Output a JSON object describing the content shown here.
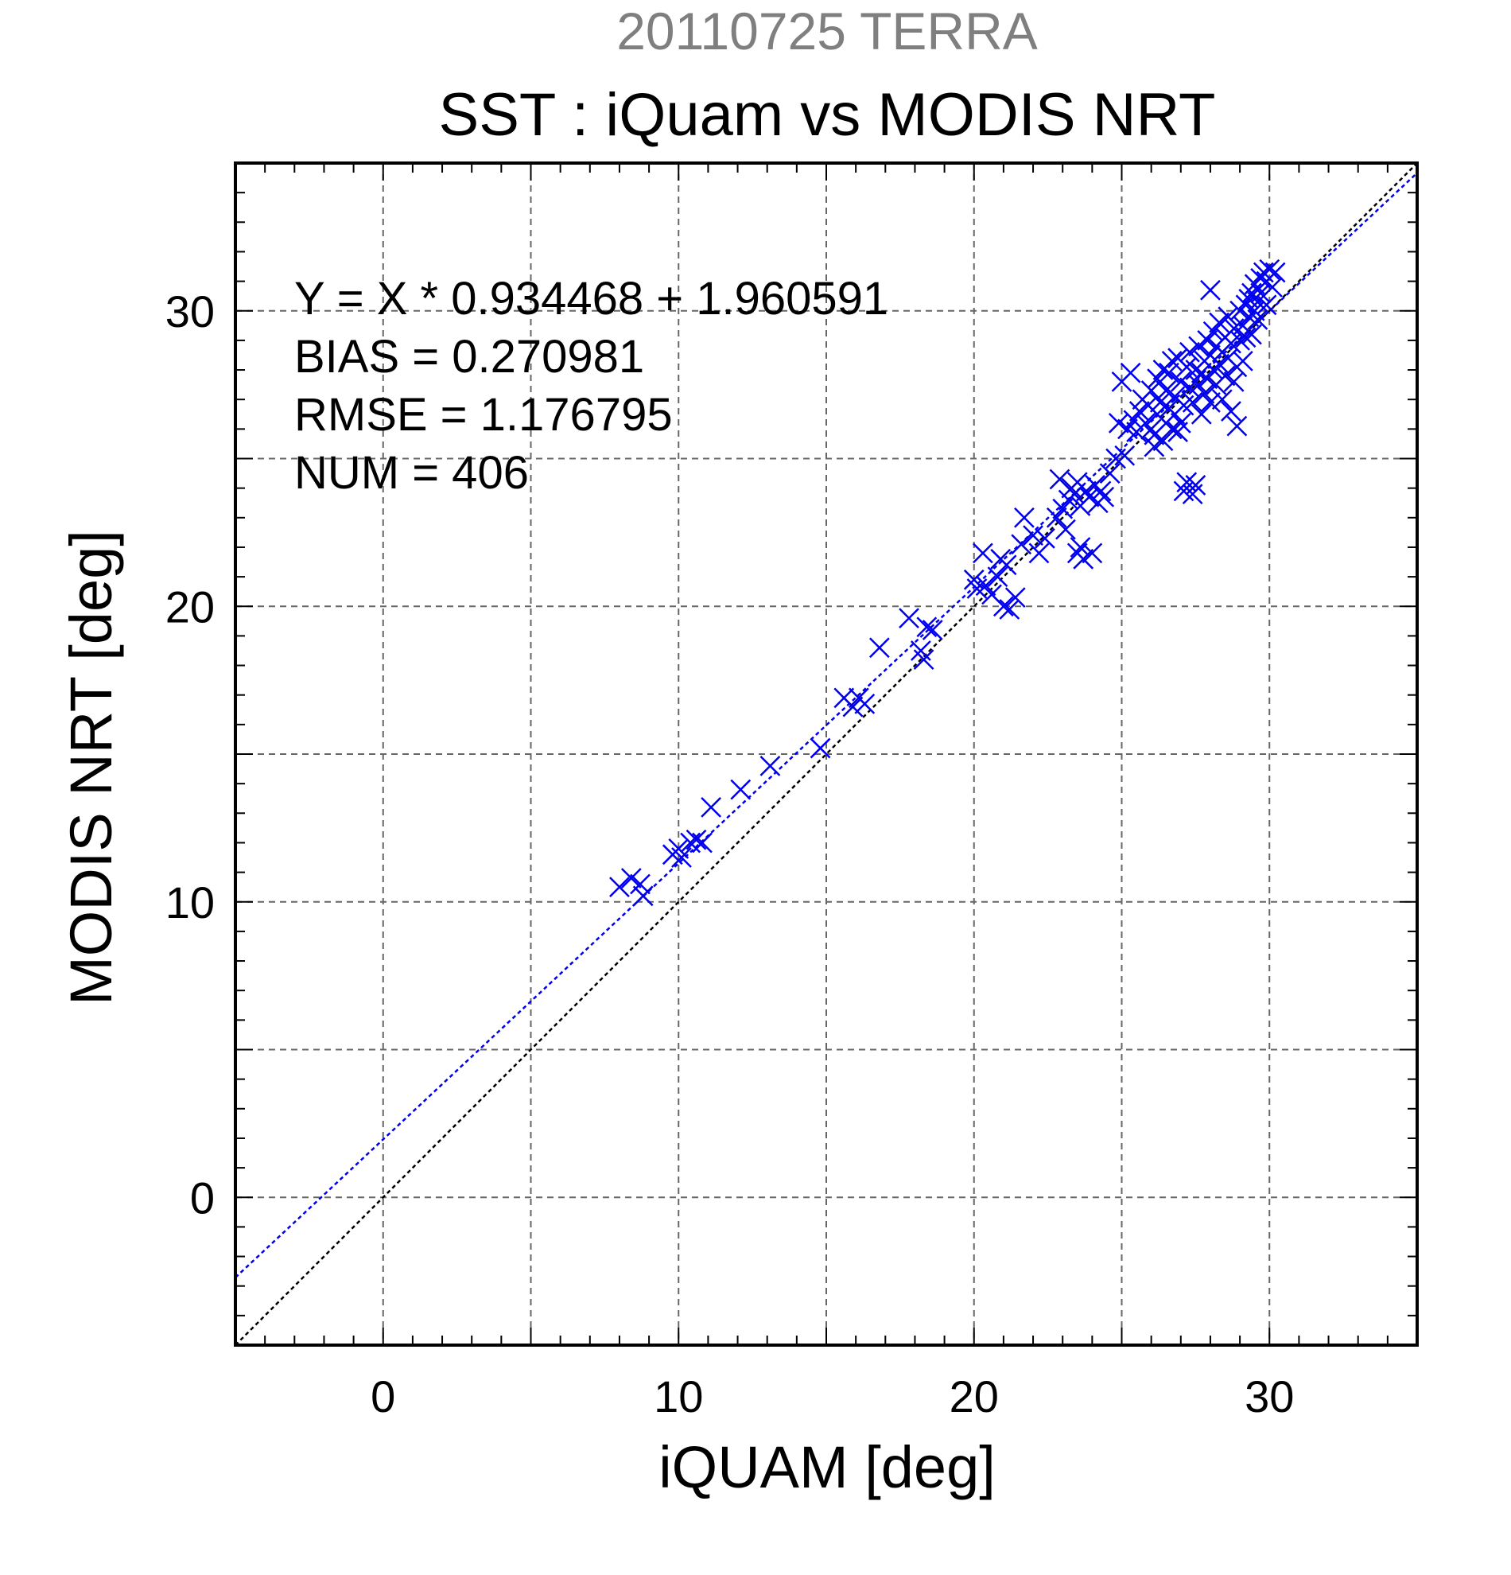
{
  "header": {
    "date_title": "20110725 TERRA",
    "main_title": "SST : iQuam vs MODIS NRT",
    "date_title_color": "#7f7f7f"
  },
  "stats": {
    "equation": "Y = X * 0.934468 + 1.960591",
    "bias": "BIAS = 0.270981",
    "rmse": "RMSE = 1.176795",
    "num": "NUM = 406"
  },
  "chart_data": {
    "type": "scatter",
    "title": "SST : iQuam vs MODIS NRT",
    "subtitle": "20110725 TERRA",
    "xlabel": "iQUAM [deg]",
    "ylabel": "MODIS NRT [deg]",
    "xlim": [
      -5,
      35
    ],
    "ylim": [
      -5,
      35
    ],
    "x_ticks": [
      0,
      10,
      20,
      30
    ],
    "y_ticks": [
      0,
      10,
      20,
      30
    ],
    "x_tick_labels": [
      "0",
      "10",
      "20",
      "30"
    ],
    "y_tick_labels": [
      "0",
      "10",
      "20",
      "30"
    ],
    "grid": true,
    "marker": "x",
    "marker_color": "#0000ee",
    "fit_line": {
      "slope": 0.934468,
      "intercept": 1.960591,
      "color": "#0000ee",
      "style": "dashed"
    },
    "identity_line": {
      "slope": 1,
      "intercept": 0,
      "color": "#000000",
      "style": "dashed"
    },
    "points": [
      [
        8.0,
        10.5
      ],
      [
        8.4,
        10.8
      ],
      [
        8.7,
        10.6
      ],
      [
        8.8,
        10.2
      ],
      [
        9.8,
        11.6
      ],
      [
        10.0,
        11.8
      ],
      [
        10.1,
        11.5
      ],
      [
        10.4,
        12.0
      ],
      [
        10.6,
        12.1
      ],
      [
        10.8,
        12.0
      ],
      [
        11.1,
        13.2
      ],
      [
        12.1,
        13.8
      ],
      [
        13.1,
        14.6
      ],
      [
        14.8,
        15.2
      ],
      [
        15.6,
        16.9
      ],
      [
        15.9,
        16.6
      ],
      [
        16.1,
        16.9
      ],
      [
        16.3,
        16.7
      ],
      [
        16.8,
        18.6
      ],
      [
        17.8,
        19.6
      ],
      [
        18.2,
        18.5
      ],
      [
        18.3,
        18.2
      ],
      [
        18.4,
        19.3
      ],
      [
        18.6,
        19.2
      ],
      [
        20.0,
        20.9
      ],
      [
        20.1,
        20.6
      ],
      [
        20.3,
        21.8
      ],
      [
        20.4,
        20.7
      ],
      [
        20.6,
        20.4
      ],
      [
        20.8,
        21.0
      ],
      [
        20.9,
        21.6
      ],
      [
        21.0,
        20.0
      ],
      [
        21.1,
        21.4
      ],
      [
        21.2,
        19.9
      ],
      [
        21.4,
        20.3
      ],
      [
        21.6,
        22.1
      ],
      [
        21.7,
        23.0
      ],
      [
        22.0,
        22.4
      ],
      [
        22.2,
        21.8
      ],
      [
        22.4,
        22.3
      ],
      [
        22.8,
        23.0
      ],
      [
        22.9,
        24.3
      ],
      [
        23.0,
        23.3
      ],
      [
        23.1,
        22.6
      ],
      [
        23.2,
        23.6
      ],
      [
        23.3,
        24.0
      ],
      [
        23.4,
        23.8
      ],
      [
        23.5,
        24.2
      ],
      [
        23.5,
        21.8
      ],
      [
        23.6,
        22.0
      ],
      [
        23.6,
        23.4
      ],
      [
        23.7,
        21.6
      ],
      [
        23.8,
        23.9
      ],
      [
        23.9,
        23.7
      ],
      [
        24.0,
        21.8
      ],
      [
        24.1,
        24.1
      ],
      [
        24.2,
        23.5
      ],
      [
        24.3,
        23.9
      ],
      [
        24.4,
        23.7
      ],
      [
        24.6,
        24.5
      ],
      [
        24.8,
        25.0
      ],
      [
        24.9,
        26.2
      ],
      [
        25.0,
        27.6
      ],
      [
        25.1,
        25.1
      ],
      [
        25.2,
        26.0
      ],
      [
        25.3,
        27.9
      ],
      [
        25.4,
        26.3
      ],
      [
        25.5,
        25.9
      ],
      [
        25.6,
        26.6
      ],
      [
        25.7,
        27.0
      ],
      [
        25.8,
        26.2
      ],
      [
        25.9,
        26.8
      ],
      [
        26.0,
        26.0
      ],
      [
        26.0,
        27.3
      ],
      [
        26.1,
        25.8
      ],
      [
        26.1,
        25.4
      ],
      [
        26.2,
        27.7
      ],
      [
        26.2,
        26.5
      ],
      [
        26.3,
        26.9
      ],
      [
        26.4,
        25.6
      ],
      [
        26.4,
        28.0
      ],
      [
        26.5,
        26.2
      ],
      [
        26.5,
        27.3
      ],
      [
        26.6,
        26.7
      ],
      [
        26.6,
        27.9
      ],
      [
        26.7,
        26.0
      ],
      [
        26.7,
        28.3
      ],
      [
        26.8,
        26.5
      ],
      [
        26.8,
        27.1
      ],
      [
        26.9,
        25.9
      ],
      [
        26.9,
        28.4
      ],
      [
        27.0,
        26.2
      ],
      [
        27.0,
        27.6
      ],
      [
        27.1,
        23.9
      ],
      [
        27.1,
        26.8
      ],
      [
        27.2,
        28.1
      ],
      [
        27.2,
        24.2
      ],
      [
        27.3,
        27.4
      ],
      [
        27.3,
        28.6
      ],
      [
        27.4,
        23.8
      ],
      [
        27.4,
        26.9
      ],
      [
        27.5,
        28.0
      ],
      [
        27.5,
        24.1
      ],
      [
        27.6,
        27.5
      ],
      [
        27.6,
        28.8
      ],
      [
        27.7,
        26.5
      ],
      [
        27.7,
        27.9
      ],
      [
        27.8,
        28.3
      ],
      [
        27.8,
        27.2
      ],
      [
        27.9,
        29.0
      ],
      [
        27.9,
        27.7
      ],
      [
        28.0,
        28.5
      ],
      [
        28.0,
        26.9
      ],
      [
        28.0,
        30.7
      ],
      [
        28.1,
        28.0
      ],
      [
        28.1,
        29.3
      ],
      [
        28.2,
        27.5
      ],
      [
        28.2,
        28.8
      ],
      [
        28.3,
        28.2
      ],
      [
        28.3,
        29.6
      ],
      [
        28.4,
        27.0
      ],
      [
        28.4,
        28.6
      ],
      [
        28.5,
        29.1
      ],
      [
        28.5,
        27.8
      ],
      [
        28.6,
        28.4
      ],
      [
        28.6,
        29.8
      ],
      [
        28.7,
        26.6
      ],
      [
        28.7,
        28.9
      ],
      [
        28.8,
        27.6
      ],
      [
        28.8,
        29.4
      ],
      [
        28.9,
        28.1
      ],
      [
        28.9,
        26.1
      ],
      [
        29.0,
        29.0
      ],
      [
        29.0,
        30.0
      ],
      [
        29.1,
        28.3
      ],
      [
        29.1,
        29.5
      ],
      [
        29.2,
        30.2
      ],
      [
        29.2,
        29.1
      ],
      [
        29.3,
        30.4
      ],
      [
        29.3,
        29.8
      ],
      [
        29.4,
        30.6
      ],
      [
        29.4,
        29.2
      ],
      [
        29.5,
        30.0
      ],
      [
        29.5,
        30.9
      ],
      [
        29.6,
        29.7
      ],
      [
        29.6,
        30.3
      ],
      [
        29.7,
        31.1
      ],
      [
        29.7,
        30.6
      ],
      [
        29.8,
        31.3
      ],
      [
        29.9,
        30.2
      ],
      [
        29.9,
        31.0
      ],
      [
        30.0,
        31.4
      ],
      [
        30.1,
        30.8
      ],
      [
        30.2,
        31.3
      ]
    ]
  }
}
